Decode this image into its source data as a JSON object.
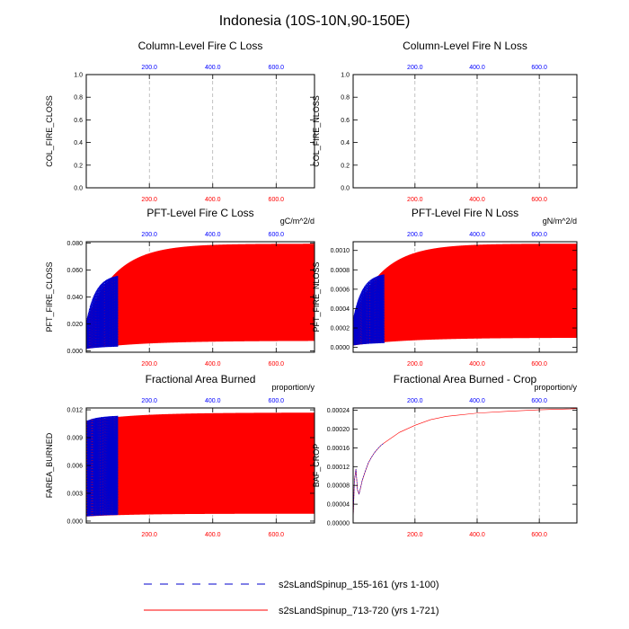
{
  "figure": {
    "title": "Indonesia (10S-10N,90-150E)",
    "colors": {
      "case1": "#0000cc",
      "case2": "#ff0000",
      "top_ticks": "#0000ff",
      "bottom_ticks": "#ff0000",
      "grid": "#999999"
    }
  },
  "legend": {
    "case1": {
      "label": "s2sLandSpinup_155-161 (yrs 1-100)",
      "color": "#0000cc",
      "style": "dashed"
    },
    "case2": {
      "label": "s2sLandSpinup_713-720 (yrs 1-721)",
      "color": "#ff0000",
      "style": "solid"
    }
  },
  "chart_data": [
    {
      "id": "col_fire_closs",
      "type": "line",
      "title": "Column-Level Fire C Loss",
      "ylabel": "COL_FIRE_CLOSS",
      "units": "",
      "xlim": [
        1,
        721
      ],
      "ylim": [
        0,
        1
      ],
      "yticks": [
        "0.0",
        "0.2",
        "0.4",
        "0.6",
        "0.8",
        "1.0"
      ],
      "top_ticks": [
        "200.0",
        "400.0",
        "600.0"
      ],
      "bottom_ticks": [
        "200.0",
        "400.0",
        "600.0"
      ],
      "series": []
    },
    {
      "id": "col_fire_nloss",
      "type": "line",
      "title": "Column-Level Fire N Loss",
      "ylabel": "COL_FIRE_NLOSS",
      "units": "",
      "xlim": [
        1,
        721
      ],
      "ylim": [
        0,
        1
      ],
      "yticks": [
        "0.0",
        "0.2",
        "0.4",
        "0.6",
        "0.8",
        "1.0"
      ],
      "top_ticks": [
        "200.0",
        "400.0",
        "600.0"
      ],
      "bottom_ticks": [
        "200.0",
        "400.0",
        "600.0"
      ],
      "series": []
    },
    {
      "id": "pft_fire_closs",
      "type": "line",
      "title": "PFT-Level Fire C Loss",
      "ylabel": "PFT_FIRE_CLOSS",
      "units": "gC/m^2/d",
      "xlim": [
        1,
        721
      ],
      "ylim": [
        -0.001,
        0.081
      ],
      "yticks": [
        "0.000",
        "0.020",
        "0.040",
        "0.060",
        "0.080"
      ],
      "top_ticks": [
        "200.0",
        "400.0",
        "600.0"
      ],
      "bottom_ticks": [
        "200.0",
        "400.0",
        "600.0"
      ],
      "series": [
        {
          "name": "s2sLandSpinup_155-161",
          "kind": "seasonal",
          "years": 100,
          "peak_start": 0.022,
          "peak_end": 0.057,
          "peak_tau": 30,
          "base_start": 0.0015,
          "base_end": 0.0035,
          "base_tau": 60
        },
        {
          "name": "s2sLandSpinup_713-720",
          "kind": "seasonal",
          "years": 721,
          "peak_start": 0.022,
          "peak_end": 0.0795,
          "peak_tau": 95,
          "base_start": 0.0015,
          "base_end": 0.0075,
          "base_tau": 180
        }
      ]
    },
    {
      "id": "pft_fire_nloss",
      "type": "line",
      "title": "PFT-Level Fire N Loss",
      "ylabel": "PFT_FIRE_NLOSS",
      "units": "gN/m^2/d",
      "xlim": [
        1,
        721
      ],
      "ylim": [
        -5e-05,
        0.00109
      ],
      "yticks": [
        "0.0000",
        "0.0002",
        "0.0004",
        "0.0006",
        "0.0008",
        "0.0010"
      ],
      "top_ticks": [
        "200.0",
        "400.0",
        "600.0"
      ],
      "bottom_ticks": [
        "200.0",
        "400.0",
        "600.0"
      ],
      "series": [
        {
          "name": "s2sLandSpinup_155-161",
          "kind": "seasonal",
          "years": 100,
          "peak_start": 0.0003,
          "peak_end": 0.00077,
          "peak_tau": 30,
          "base_start": 2e-05,
          "base_end": 5e-05,
          "base_tau": 60
        },
        {
          "name": "s2sLandSpinup_713-720",
          "kind": "seasonal",
          "years": 721,
          "peak_start": 0.0003,
          "peak_end": 0.00107,
          "peak_tau": 95,
          "base_start": 2e-05,
          "base_end": 0.0001,
          "base_tau": 180
        }
      ]
    },
    {
      "id": "farea_burned",
      "type": "line",
      "title": "Fractional Area Burned",
      "ylabel": "FAREA_BURNED",
      "units": "proportion/y",
      "xlim": [
        1,
        721
      ],
      "ylim": [
        -0.0002,
        0.0122
      ],
      "yticks": [
        "0.000",
        "0.003",
        "0.006",
        "0.009",
        "0.012"
      ],
      "top_ticks": [
        "200.0",
        "400.0",
        "600.0"
      ],
      "bottom_ticks": [
        "200.0",
        "400.0",
        "600.0"
      ],
      "series": [
        {
          "name": "s2sLandSpinup_155-161",
          "kind": "seasonal",
          "years": 100,
          "peak_start": 0.0108,
          "peak_end": 0.0114,
          "peak_tau": 40,
          "base_start": 0.0005,
          "base_end": 0.0007,
          "base_tau": 60
        },
        {
          "name": "s2sLandSpinup_713-720",
          "kind": "seasonal",
          "years": 721,
          "peak_start": 0.0108,
          "peak_end": 0.0117,
          "peak_tau": 150,
          "base_start": 0.0005,
          "base_end": 0.0008,
          "base_tau": 150
        }
      ]
    },
    {
      "id": "baf_crop",
      "type": "line",
      "title": "Fractional Area Burned - Crop",
      "ylabel": "BAF_CROP",
      "units": "proportion/y",
      "xlim": [
        1,
        721
      ],
      "ylim": [
        0,
        0.000245
      ],
      "yticks": [
        "0.00000",
        "0.00004",
        "0.00008",
        "0.00012",
        "0.00016",
        "0.00020",
        "0.00024"
      ],
      "top_ticks": [
        "200.0",
        "400.0",
        "600.0"
      ],
      "bottom_ticks": [
        "200.0",
        "400.0",
        "600.0"
      ],
      "series": [
        {
          "name": "s2sLandSpinup_155-161",
          "kind": "points",
          "x": [
            1,
            5,
            10,
            15,
            20,
            25,
            30,
            35,
            40,
            50,
            60,
            70,
            80,
            90,
            100
          ],
          "y": [
            5e-06,
            9e-05,
            0.000115,
            7.05e-05,
            6.2e-05,
            7.5e-05,
            9e-05,
            0.0001,
            0.00011,
            0.000128,
            0.00014,
            0.00015,
            0.000158,
            0.000165,
            0.00017
          ]
        },
        {
          "name": "s2sLandSpinup_713-720",
          "kind": "points",
          "x": [
            1,
            5,
            10,
            15,
            20,
            25,
            30,
            35,
            40,
            50,
            60,
            70,
            80,
            90,
            100,
            150,
            200,
            250,
            300,
            400,
            500,
            600,
            700,
            721
          ],
          "y": [
            5e-06,
            9e-05,
            0.000115,
            7.05e-05,
            6.2e-05,
            7.5e-05,
            9e-05,
            0.0001,
            0.00011,
            0.000128,
            0.00014,
            0.00015,
            0.000158,
            0.000165,
            0.00017,
            0.000193,
            0.000208,
            0.00022,
            0.000227,
            0.000234,
            0.000238,
            0.000241,
            0.000243,
            0.000244
          ]
        }
      ]
    }
  ]
}
